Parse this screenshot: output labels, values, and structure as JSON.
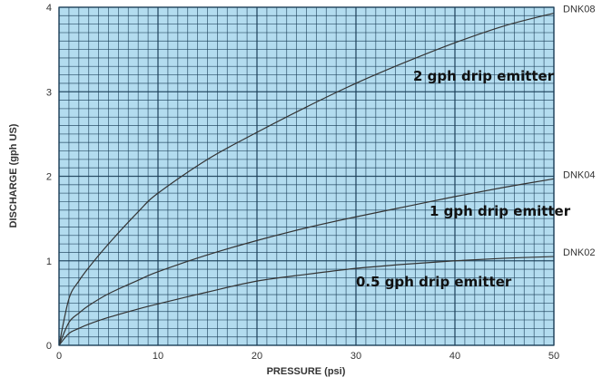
{
  "chart_data": {
    "type": "line",
    "xlabel": "PRESSURE (psi)",
    "ylabel": "DISCHARGE (gph US)",
    "xlim": [
      0,
      50
    ],
    "ylim": [
      0,
      4
    ],
    "x_ticks": [
      0,
      10,
      20,
      30,
      40,
      50
    ],
    "y_ticks": [
      0,
      1,
      2,
      3,
      4
    ],
    "grid": true,
    "colors": {
      "plot_background": "#b3dcef",
      "grid_line": "#1a3d57",
      "series_line": "#333333"
    },
    "series": [
      {
        "name": "DNK08",
        "annotation": "2 gph drip emitter",
        "x": [
          0,
          1,
          2,
          3,
          5,
          8,
          10,
          15,
          20,
          25,
          30,
          35,
          40,
          45,
          50
        ],
        "values": [
          0,
          0.55,
          0.76,
          0.92,
          1.2,
          1.58,
          1.8,
          2.2,
          2.52,
          2.82,
          3.1,
          3.35,
          3.58,
          3.78,
          3.93
        ]
      },
      {
        "name": "DNK04",
        "annotation": "1 gph drip emitter",
        "x": [
          0,
          1,
          2,
          3,
          5,
          8,
          10,
          15,
          20,
          25,
          30,
          35,
          40,
          45,
          50
        ],
        "values": [
          0,
          0.27,
          0.38,
          0.47,
          0.61,
          0.77,
          0.87,
          1.07,
          1.24,
          1.39,
          1.52,
          1.64,
          1.76,
          1.87,
          1.97
        ]
      },
      {
        "name": "DNK02",
        "annotation": "0.5 gph drip emitter",
        "x": [
          0,
          1,
          2,
          3,
          5,
          8,
          10,
          15,
          20,
          25,
          30,
          35,
          40,
          45,
          50
        ],
        "values": [
          0,
          0.14,
          0.2,
          0.25,
          0.33,
          0.43,
          0.49,
          0.63,
          0.76,
          0.84,
          0.91,
          0.96,
          1.0,
          1.03,
          1.05
        ]
      }
    ]
  }
}
